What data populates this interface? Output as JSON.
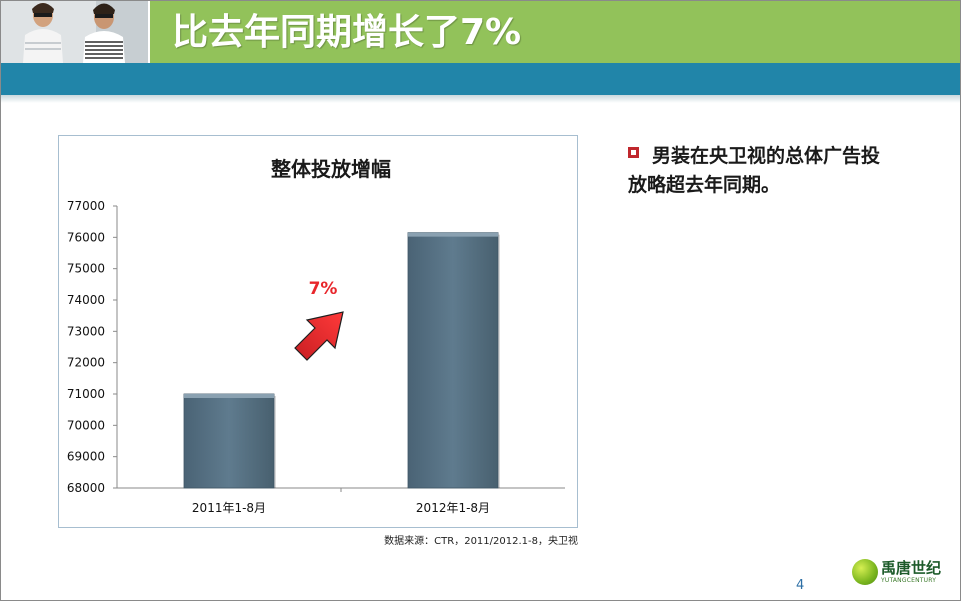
{
  "slide": {
    "title": "比去年同期增长了7%",
    "page_number": "4",
    "source_note": "数据来源：CTR，2011/2012.1-8，央卫视",
    "bullet": "男装在央卫视的总体广告投放略超去年同期。",
    "logo": {
      "name": "禹唐世纪",
      "sub": "YUTANGCENTURY"
    },
    "colors": {
      "title_band": "#92c25a",
      "teal_bar": "#2185a9",
      "bar_fill": "#5a7487",
      "arrow": "#e8262b",
      "bullet": "#c0272d"
    }
  },
  "chart_data": {
    "type": "bar",
    "title": "整体投放增幅",
    "categories": [
      "2011年1-8月",
      "2012年1-8月"
    ],
    "values": [
      71000,
      76150
    ],
    "ylim": [
      68000,
      77000
    ],
    "yticks": [
      "68000",
      "69000",
      "70000",
      "71000",
      "72000",
      "73000",
      "74000",
      "75000",
      "76000",
      "77000"
    ],
    "annotation": "7%",
    "grid": false
  }
}
